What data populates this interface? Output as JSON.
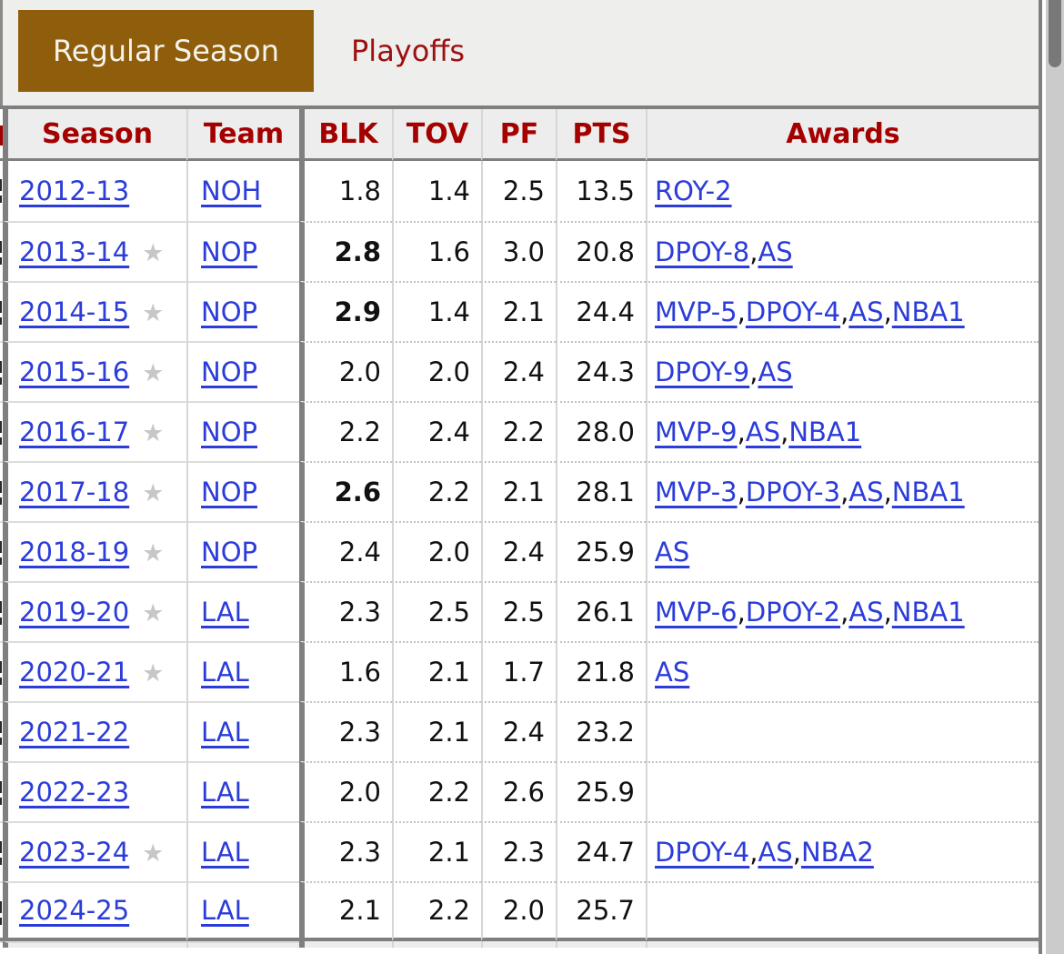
{
  "tabs": [
    {
      "label": "Regular Season",
      "active": true
    },
    {
      "label": "Playoffs",
      "active": false
    }
  ],
  "icons": {
    "all_star": "★"
  },
  "colors": {
    "active_tab_brown": "#8f5e0c",
    "header_red": "#a40000",
    "link_blue": "#2b3cd9",
    "star_gray": "#c7c7c7",
    "border_dark": "#7f7f7f"
  },
  "table": {
    "awards_separator": ",",
    "headers": {
      "season": "Season",
      "team": "Team",
      "blk": "BLK",
      "tov": "TOV",
      "pf": "PF",
      "pts": "PTS",
      "awards": "Awards"
    },
    "rows": [
      {
        "season": "2012-13",
        "all_star": false,
        "team": "NOH",
        "blk": "1.8",
        "blk_bold": false,
        "tov": "1.4",
        "pf": "2.5",
        "pts": "13.5",
        "awards": [
          "ROY-2"
        ]
      },
      {
        "season": "2013-14",
        "all_star": true,
        "team": "NOP",
        "blk": "2.8",
        "blk_bold": true,
        "tov": "1.6",
        "pf": "3.0",
        "pts": "20.8",
        "awards": [
          "DPOY-8",
          "AS"
        ]
      },
      {
        "season": "2014-15",
        "all_star": true,
        "team": "NOP",
        "blk": "2.9",
        "blk_bold": true,
        "tov": "1.4",
        "pf": "2.1",
        "pts": "24.4",
        "awards": [
          "MVP-5",
          "DPOY-4",
          "AS",
          "NBA1"
        ]
      },
      {
        "season": "2015-16",
        "all_star": true,
        "team": "NOP",
        "blk": "2.0",
        "blk_bold": false,
        "tov": "2.0",
        "pf": "2.4",
        "pts": "24.3",
        "awards": [
          "DPOY-9",
          "AS"
        ]
      },
      {
        "season": "2016-17",
        "all_star": true,
        "team": "NOP",
        "blk": "2.2",
        "blk_bold": false,
        "tov": "2.4",
        "pf": "2.2",
        "pts": "28.0",
        "awards": [
          "MVP-9",
          "AS",
          "NBA1"
        ]
      },
      {
        "season": "2017-18",
        "all_star": true,
        "team": "NOP",
        "blk": "2.6",
        "blk_bold": true,
        "tov": "2.2",
        "pf": "2.1",
        "pts": "28.1",
        "awards": [
          "MVP-3",
          "DPOY-3",
          "AS",
          "NBA1"
        ]
      },
      {
        "season": "2018-19",
        "all_star": true,
        "team": "NOP",
        "blk": "2.4",
        "blk_bold": false,
        "tov": "2.0",
        "pf": "2.4",
        "pts": "25.9",
        "awards": [
          "AS"
        ]
      },
      {
        "season": "2019-20",
        "all_star": true,
        "team": "LAL",
        "blk": "2.3",
        "blk_bold": false,
        "tov": "2.5",
        "pf": "2.5",
        "pts": "26.1",
        "awards": [
          "MVP-6",
          "DPOY-2",
          "AS",
          "NBA1"
        ]
      },
      {
        "season": "2020-21",
        "all_star": true,
        "team": "LAL",
        "blk": "1.6",
        "blk_bold": false,
        "tov": "2.1",
        "pf": "1.7",
        "pts": "21.8",
        "awards": [
          "AS"
        ]
      },
      {
        "season": "2021-22",
        "all_star": false,
        "team": "LAL",
        "blk": "2.3",
        "blk_bold": false,
        "tov": "2.1",
        "pf": "2.4",
        "pts": "23.2",
        "awards": []
      },
      {
        "season": "2022-23",
        "all_star": false,
        "team": "LAL",
        "blk": "2.0",
        "blk_bold": false,
        "tov": "2.2",
        "pf": "2.6",
        "pts": "25.9",
        "awards": []
      },
      {
        "season": "2023-24",
        "all_star": true,
        "team": "LAL",
        "blk": "2.3",
        "blk_bold": false,
        "tov": "2.1",
        "pf": "2.3",
        "pts": "24.7",
        "awards": [
          "DPOY-4",
          "AS",
          "NBA2"
        ]
      },
      {
        "season": "2024-25",
        "all_star": false,
        "team": "LAL",
        "blk": "2.1",
        "blk_bold": false,
        "tov": "2.2",
        "pf": "2.0",
        "pts": "25.7",
        "awards": []
      }
    ]
  }
}
